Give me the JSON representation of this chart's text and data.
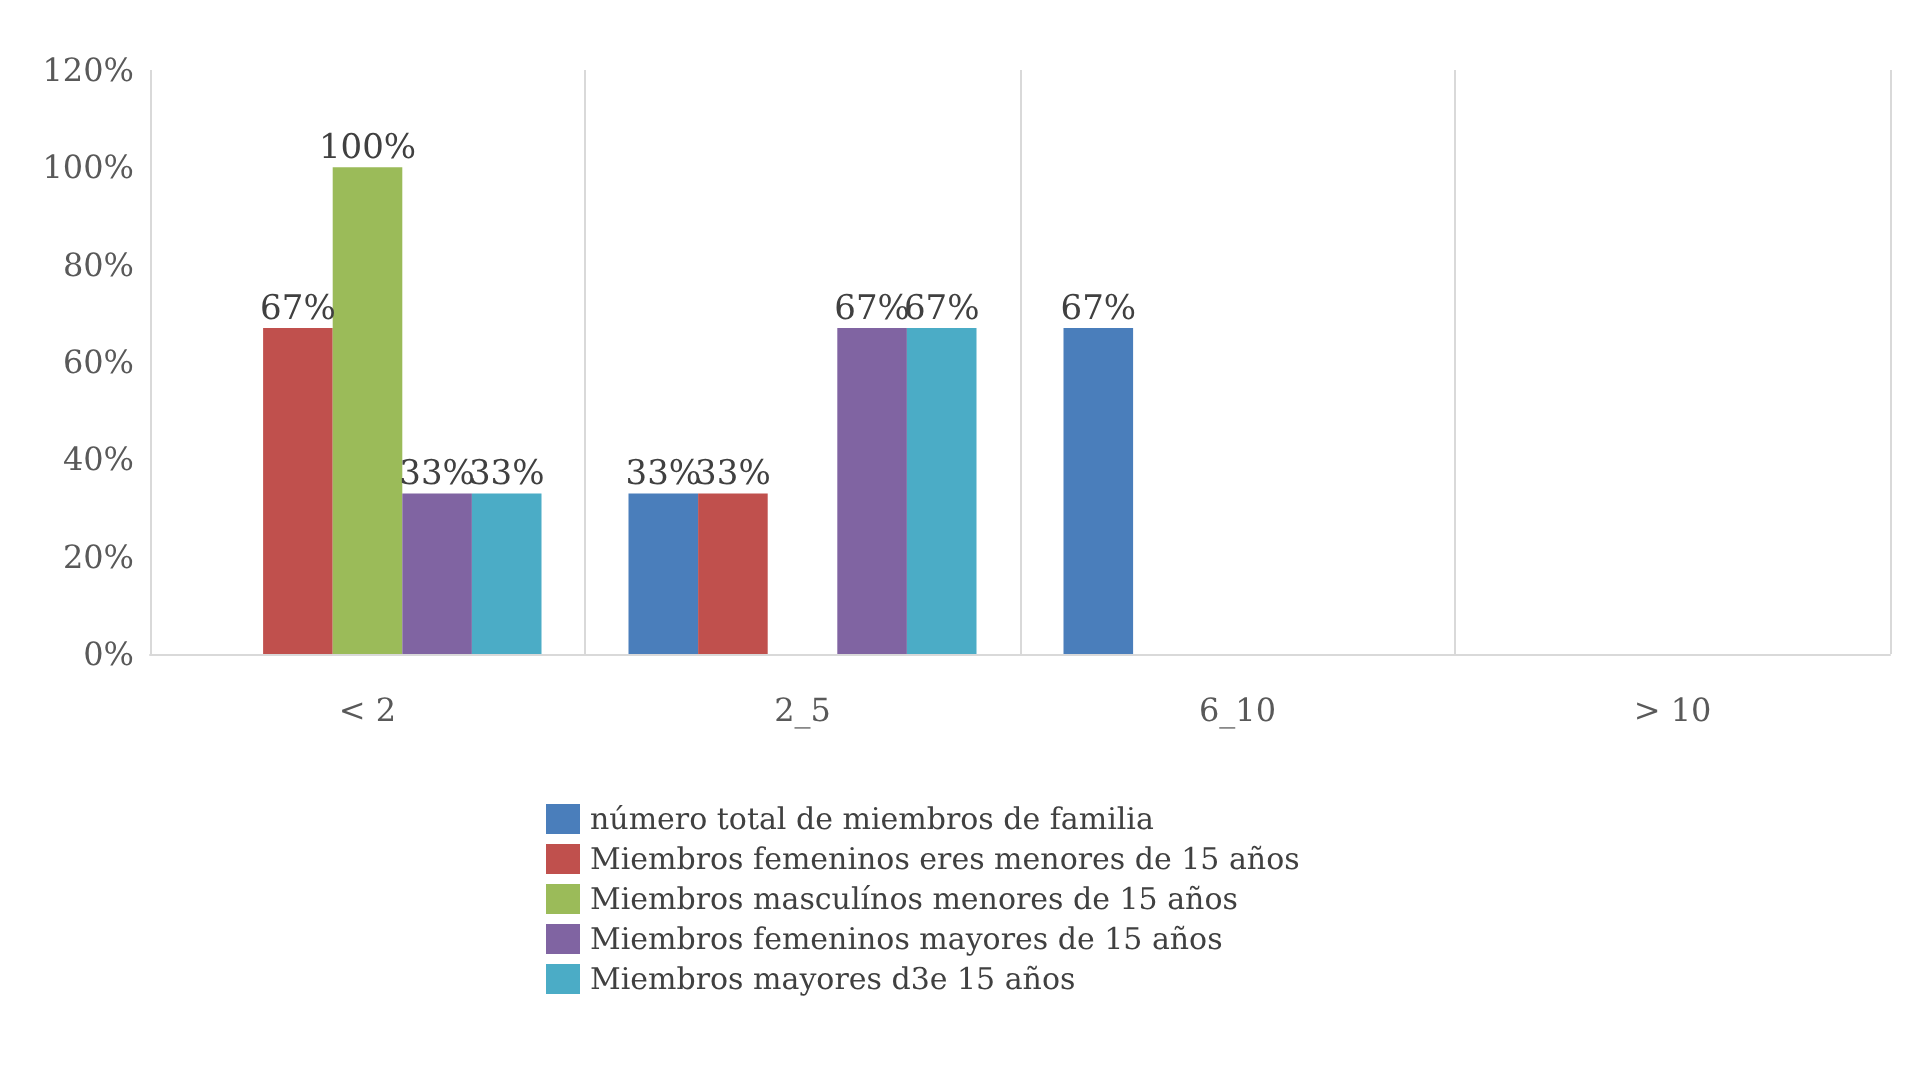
{
  "chart_data": {
    "type": "bar",
    "categories": [
      "< 2",
      "2_5",
      "6_10",
      "> 10"
    ],
    "series": [
      {
        "name": "número total de miembros de familia",
        "color": "#4a7ebb",
        "values": [
          null,
          33,
          67,
          null
        ],
        "value_labels": [
          null,
          "33%",
          "67%",
          null
        ]
      },
      {
        "name": "Miembros femeninos eres menores de 15 años",
        "color": "#c0504d",
        "values": [
          67,
          33,
          null,
          null
        ],
        "value_labels": [
          "67%",
          "33%",
          null,
          null
        ]
      },
      {
        "name": "Miembros masculínos menores de 15 años",
        "color": "#9bbb59",
        "values": [
          100,
          null,
          null,
          null
        ],
        "value_labels": [
          "100%",
          null,
          null,
          null
        ]
      },
      {
        "name": "Miembros femeninos mayores de 15 años",
        "color": "#8064a2",
        "values": [
          33,
          67,
          null,
          null
        ],
        "value_labels": [
          "33%",
          "67%",
          null,
          null
        ]
      },
      {
        "name": "Miembros mayores d3e 15 años",
        "color": "#4bacc6",
        "values": [
          33,
          67,
          null,
          null
        ],
        "value_labels": [
          "33%",
          "67%",
          null,
          null
        ]
      }
    ],
    "ylim": [
      0,
      120
    ],
    "yticks": [
      {
        "value": 0,
        "label": "0%"
      },
      {
        "value": 20,
        "label": "20%"
      },
      {
        "value": 40,
        "label": "40%"
      },
      {
        "value": 60,
        "label": "60%"
      },
      {
        "value": 80,
        "label": "80%"
      },
      {
        "value": 100,
        "label": "100%"
      },
      {
        "value": 120,
        "label": "120%"
      }
    ],
    "grid": "x",
    "legend": "bottom"
  }
}
